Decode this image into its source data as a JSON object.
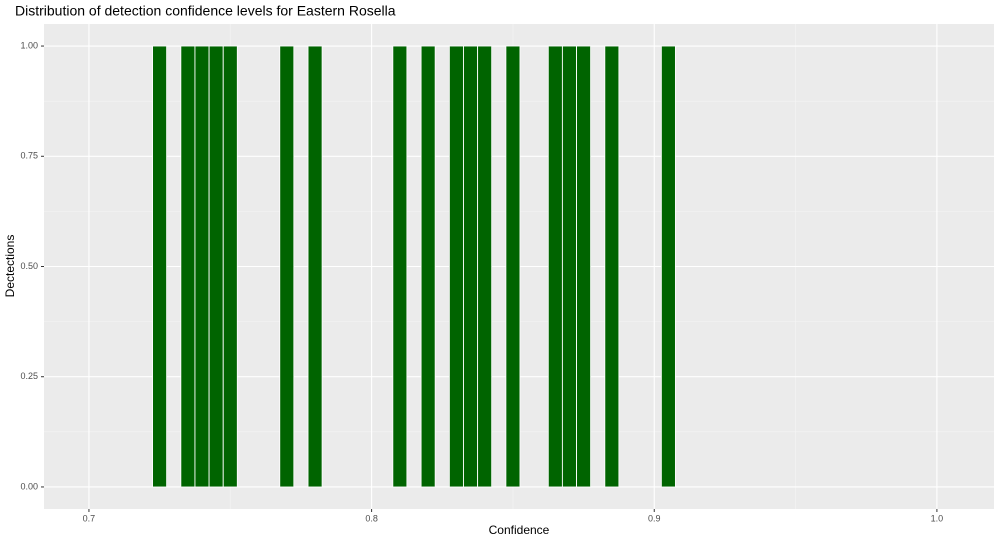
{
  "chart_data": {
    "type": "bar",
    "title": "Distribution of detection confidence levels for Eastern Rosella",
    "x_label": "Confidence",
    "y_label": "Dectections",
    "x": [
      0.725,
      0.735,
      0.74,
      0.745,
      0.75,
      0.77,
      0.78,
      0.81,
      0.82,
      0.83,
      0.835,
      0.84,
      0.85,
      0.865,
      0.87,
      0.875,
      0.885,
      0.905
    ],
    "values": [
      1,
      1,
      1,
      1,
      1,
      1,
      1,
      1,
      1,
      1,
      1,
      1,
      1,
      1,
      1,
      1,
      1,
      1
    ],
    "color": "#006400",
    "xlim": [
      0.6841,
      1.0202
    ],
    "xticks": [
      0.7,
      0.8,
      0.9,
      {
        "value": 1,
        "label": "1.0"
      }
    ],
    "ylim": [
      -0.05,
      1.05
    ],
    "yticks": [
      {
        "value": 0,
        "label": "0.00"
      },
      {
        "value": 0.25,
        "label": "0.25"
      },
      {
        "value": 0.5,
        "label": "0.50"
      },
      {
        "value": 0.75,
        "label": "0.75"
      },
      {
        "value": 1,
        "label": "1.00"
      }
    ],
    "grid": true
  }
}
